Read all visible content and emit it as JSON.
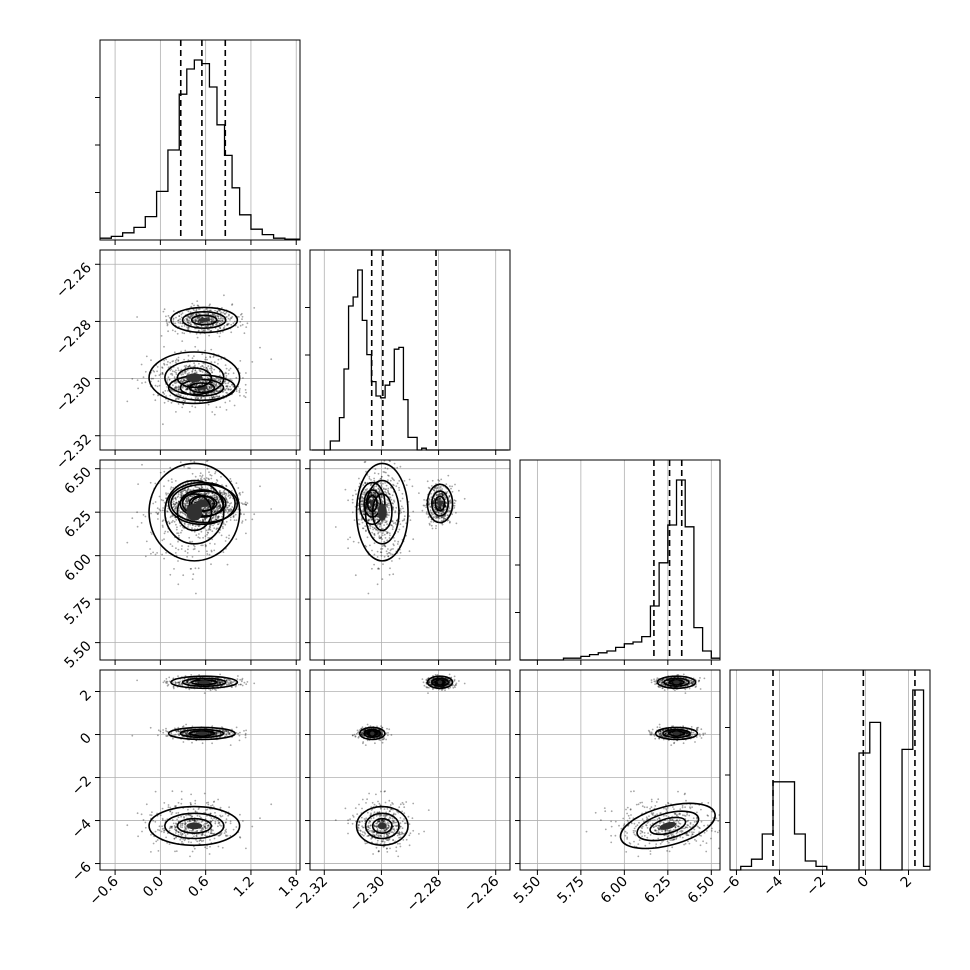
{
  "chart_data": {
    "type": "corner",
    "parameters": 4,
    "grid": true,
    "ticks": [
      {
        "values": [
          -0.6,
          0.0,
          0.6,
          1.2,
          1.8
        ],
        "labels": [
          "−0.6",
          "0.0",
          "0.6",
          "1.2",
          "1.8"
        ]
      },
      {
        "values": [
          -2.32,
          -2.3,
          -2.28,
          -2.26
        ],
        "labels": [
          "−2.32",
          "−2.30",
          "−2.28",
          "−2.26"
        ]
      },
      {
        "values": [
          5.5,
          5.75,
          6.0,
          6.25,
          6.5
        ],
        "labels": [
          "5.50",
          "5.75",
          "6.00",
          "6.25",
          "6.50"
        ]
      },
      {
        "values": [
          -6,
          -4,
          -2,
          0,
          2
        ],
        "labels": [
          "−6",
          "−4",
          "−2",
          "0",
          "2"
        ]
      }
    ],
    "ranges": [
      [
        -0.8,
        1.85
      ],
      [
        -2.325,
        -2.255
      ],
      [
        5.4,
        6.55
      ],
      [
        -6.3,
        3.0
      ]
    ],
    "histograms": [
      {
        "edges": [
          -0.8,
          -0.65,
          -0.5,
          -0.35,
          -0.2,
          -0.05,
          0.1,
          0.25,
          0.35,
          0.45,
          0.55,
          0.65,
          0.75,
          0.85,
          0.95,
          1.05,
          1.2,
          1.35,
          1.5,
          1.65,
          1.85
        ],
        "counts": [
          0.01,
          0.02,
          0.04,
          0.07,
          0.13,
          0.27,
          0.5,
          0.81,
          0.95,
          1.0,
          0.98,
          0.85,
          0.64,
          0.47,
          0.29,
          0.14,
          0.06,
          0.03,
          0.01,
          0.005
        ],
        "quantiles": [
          0.27,
          0.55,
          0.86
        ]
      },
      {
        "edges": [
          -2.3243,
          -2.3227,
          -2.3211,
          -2.3195,
          -2.3179,
          -2.3163,
          -2.3147,
          -2.3131,
          -2.3115,
          -2.3099,
          -2.3083,
          -2.3067,
          -2.3051,
          -2.3035,
          -2.3019,
          -2.3003,
          -2.2987,
          -2.2971,
          -2.2955,
          -2.2939,
          -2.2923,
          -2.2907,
          -2.2891,
          -2.2875,
          -2.2859,
          -2.2843,
          -2.2827,
          -2.2811,
          -2.2795,
          -2.2779,
          -2.2763,
          -2.2747,
          -2.2731,
          -2.2715,
          -2.2699,
          -2.2683,
          -2.2667,
          -2.2651,
          -2.2635,
          -2.2619,
          -2.2603,
          -2.2587,
          -2.2571,
          -2.2555
        ],
        "counts": [
          0,
          0,
          0,
          0,
          0.05,
          0.05,
          0.18,
          0.45,
          0.8,
          0.85,
          1.0,
          0.72,
          0.53,
          0.38,
          0.3,
          0.29,
          0.36,
          0.38,
          0.56,
          0.57,
          0.28,
          0.07,
          0.07,
          0,
          0.01,
          0,
          0,
          0,
          0,
          0,
          0,
          0,
          0,
          0,
          0,
          0,
          0,
          0,
          0,
          0,
          0,
          0,
          0
        ],
        "quantiles": [
          -2.3034,
          -2.2995,
          -2.2809
        ]
      },
      {
        "edges": [
          5.4,
          5.65,
          5.7,
          5.75,
          5.8,
          5.85,
          5.9,
          5.95,
          6.0,
          6.05,
          6.1,
          6.15,
          6.2,
          6.25,
          6.3,
          6.35,
          6.4,
          6.45,
          6.5,
          6.55
        ],
        "counts": [
          0,
          0.01,
          0.01,
          0.02,
          0.03,
          0.04,
          0.05,
          0.07,
          0.09,
          0.1,
          0.13,
          0.3,
          0.54,
          0.75,
          1.0,
          0.74,
          0.18,
          0.05,
          0.01
        ],
        "quantiles": [
          6.17,
          6.26,
          6.33
        ]
      },
      {
        "edges": [
          -6.3,
          -5.8,
          -5.3,
          -4.8,
          -4.3,
          -3.8,
          -3.3,
          -2.8,
          -2.3,
          -1.8,
          -1.3,
          -0.8,
          -0.3,
          0.2,
          0.7,
          1.2,
          1.7,
          2.2,
          2.7,
          3.0
        ],
        "counts": [
          0,
          0.02,
          0.06,
          0.2,
          0.49,
          0.49,
          0.2,
          0.05,
          0.02,
          0,
          0,
          0,
          0.65,
          0.82,
          0,
          0,
          0.67,
          1.0,
          0.02
        ],
        "quantiles": [
          -4.3,
          -0.1,
          2.3
        ]
      }
    ],
    "modes": [
      {
        "c": [
          0.58,
          -2.2795,
          6.3,
          2.43
        ],
        "s": [
          0.22,
          0.0022,
          0.055,
          0.14
        ],
        "w": 0.34
      },
      {
        "c": [
          0.55,
          -2.3032,
          6.3,
          0.05
        ],
        "s": [
          0.22,
          0.0022,
          0.06,
          0.14
        ],
        "w": 0.33
      },
      {
        "c": [
          0.45,
          -2.2997,
          6.25,
          -4.25
        ],
        "s": [
          0.3,
          0.0045,
          0.14,
          0.45
        ],
        "w": 0.33
      }
    ]
  }
}
